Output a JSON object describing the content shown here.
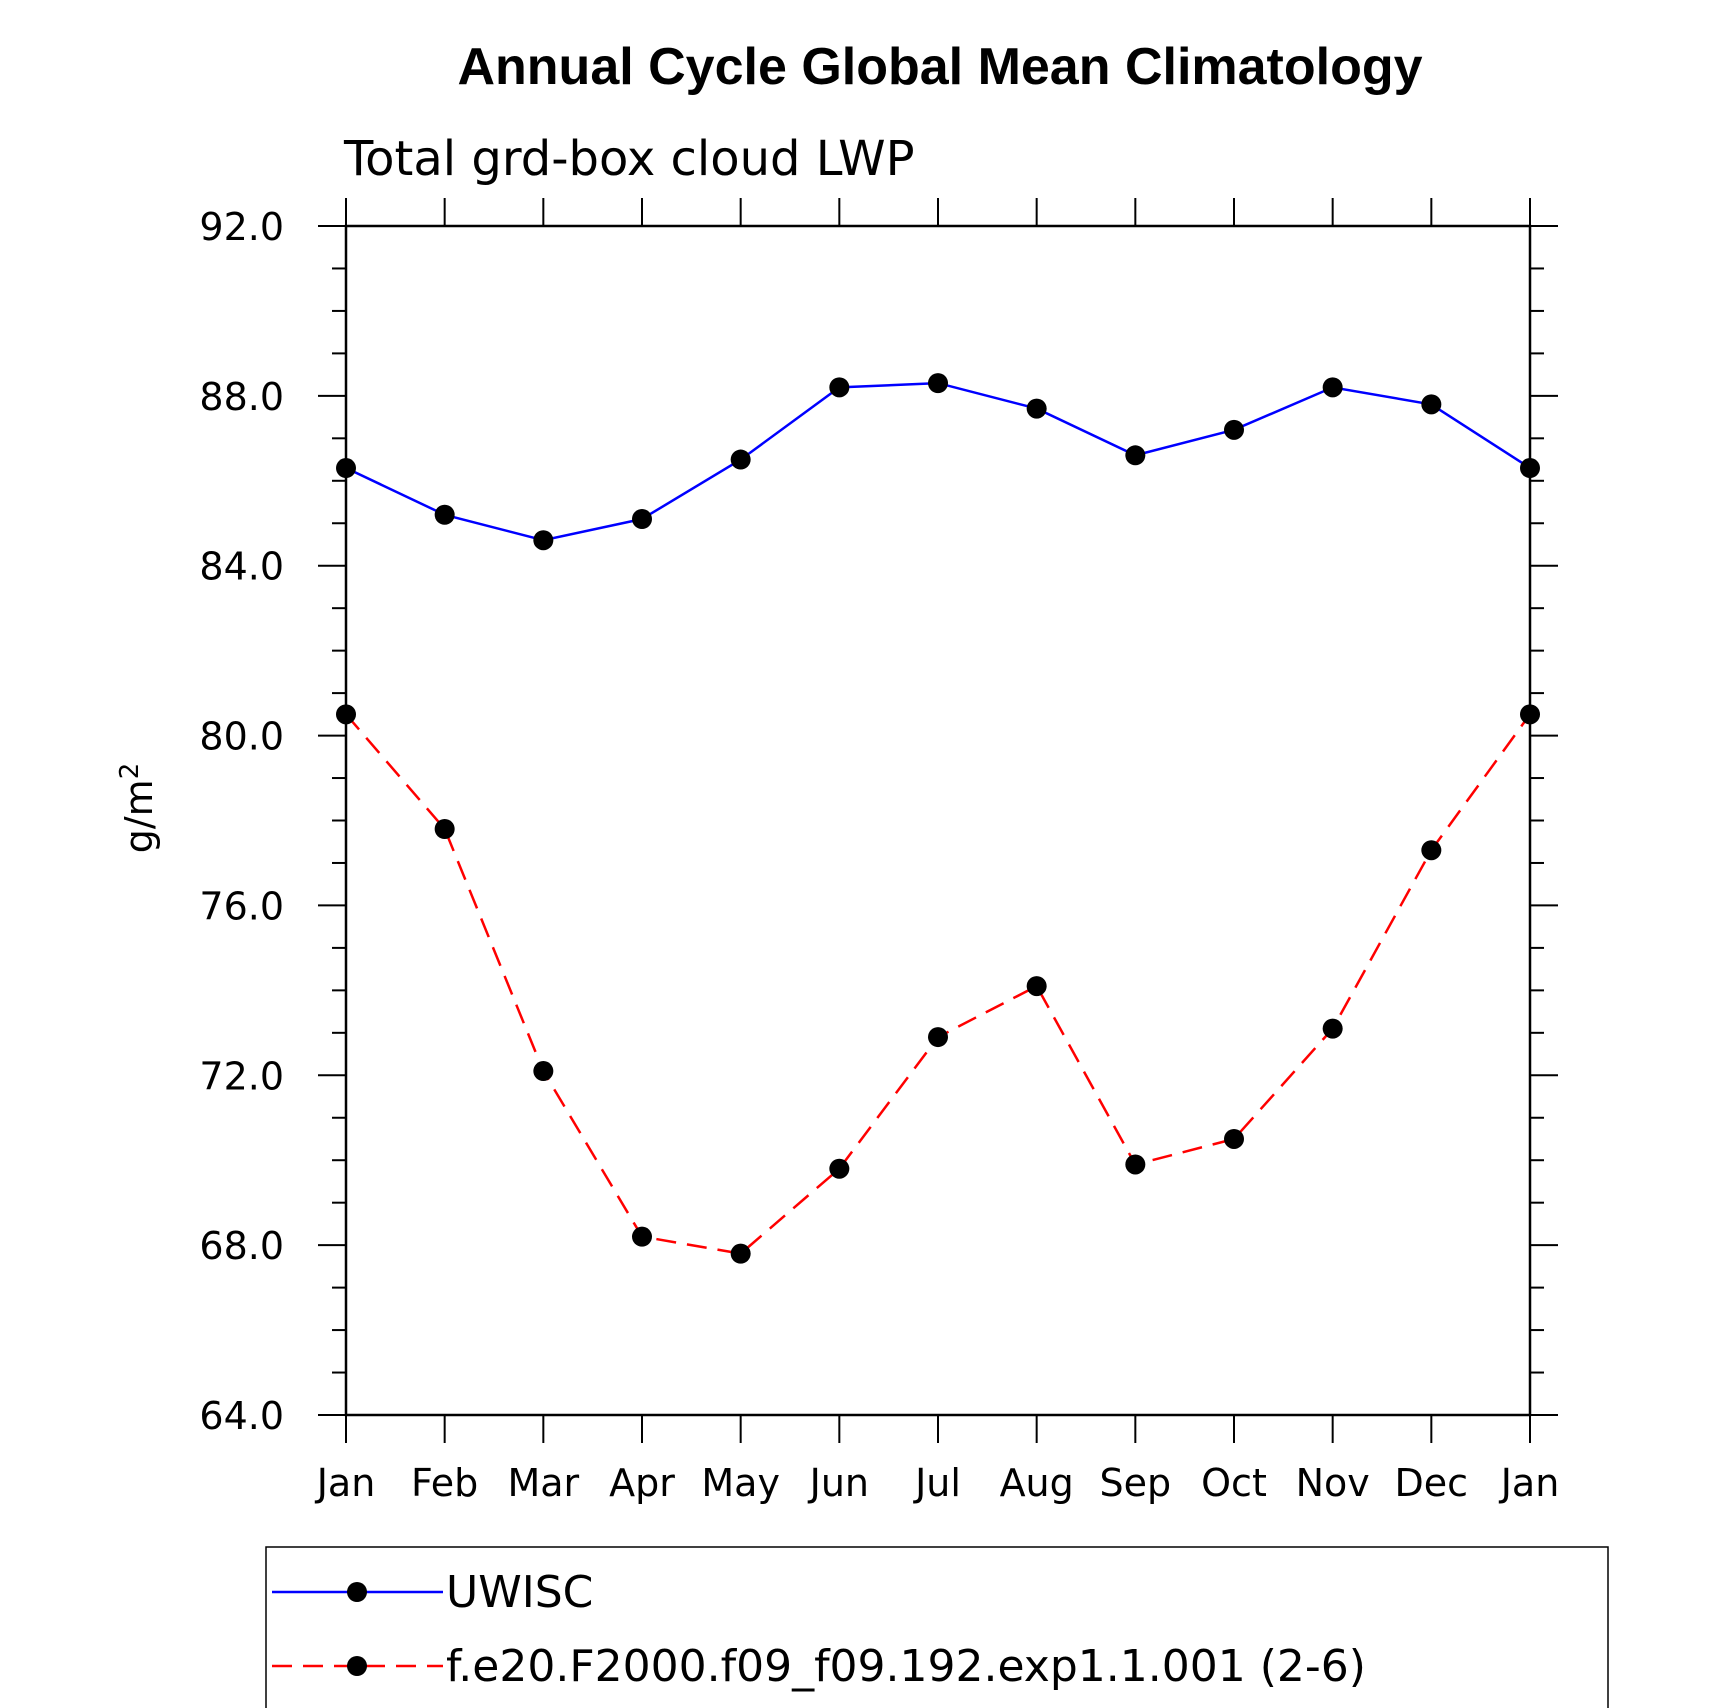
{
  "chart_data": {
    "type": "line",
    "title": "Annual Cycle Global Mean Climatology",
    "subtitle": "Total grd-box cloud LWP",
    "ylabel": "g/m",
    "ylabel_superscript": "2",
    "ylim": [
      64,
      92
    ],
    "yticks": [
      "64.0",
      "68.0",
      "72.0",
      "76.0",
      "80.0",
      "84.0",
      "88.0",
      "92.0"
    ],
    "categories": [
      "Jan",
      "Feb",
      "Mar",
      "Apr",
      "May",
      "Jun",
      "Jul",
      "Aug",
      "Sep",
      "Oct",
      "Nov",
      "Dec",
      "Jan"
    ],
    "legend_position": "bottom",
    "series": [
      {
        "name": "UWISC",
        "color": "#0000ff",
        "dashed": false,
        "values": [
          86.3,
          85.2,
          84.6,
          85.1,
          86.5,
          88.2,
          88.3,
          87.7,
          86.6,
          87.2,
          88.2,
          87.8,
          86.3
        ]
      },
      {
        "name": "f.e20.F2000.f09_f09.192.exp1.1.001 (2-6)",
        "color": "#ff0000",
        "dashed": true,
        "values": [
          80.5,
          77.8,
          72.1,
          68.2,
          67.8,
          69.8,
          72.9,
          74.1,
          69.9,
          70.5,
          73.1,
          77.3,
          80.5
        ]
      }
    ]
  }
}
